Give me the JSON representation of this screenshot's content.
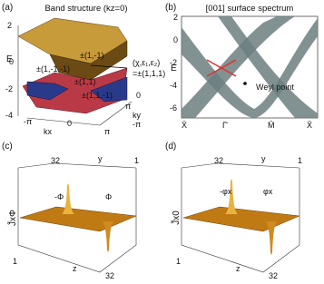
{
  "panels": [
    {
      "label": "(a)",
      "title": "Band structure (kz=0)",
      "axis_label": "E",
      "texts": [
        "2",
        "0",
        "-2",
        "-4",
        "±(1,-1)",
        "±(1,-1,-1)",
        "±(1,1)",
        "±(1,1,-1)",
        "(χ,ε₁,ε₂)",
        "=±(1,1,1)",
        "-π",
        "kx",
        "0",
        "π",
        "π",
        "ky",
        "0",
        "-π"
      ]
    },
    {
      "label": "(b)",
      "title": "[001] surface spectrum",
      "axis_label": "E",
      "texts": [
        "2",
        "0",
        "-2",
        "-4",
        "-6",
        "X̄",
        "Γ̄",
        "M̄",
        "X̄",
        "Weyl point"
      ]
    },
    {
      "label": "(c)",
      "axis_label": "J̃xΦ",
      "texts": [
        "32",
        "y",
        "1",
        "-Φ",
        "Φ",
        "1",
        "z",
        "32"
      ]
    },
    {
      "label": "(d)",
      "axis_label": "J̃x0",
      "texts": [
        "32",
        "y",
        "1",
        "-φx",
        "φx",
        "1",
        "z",
        "32"
      ]
    }
  ]
}
